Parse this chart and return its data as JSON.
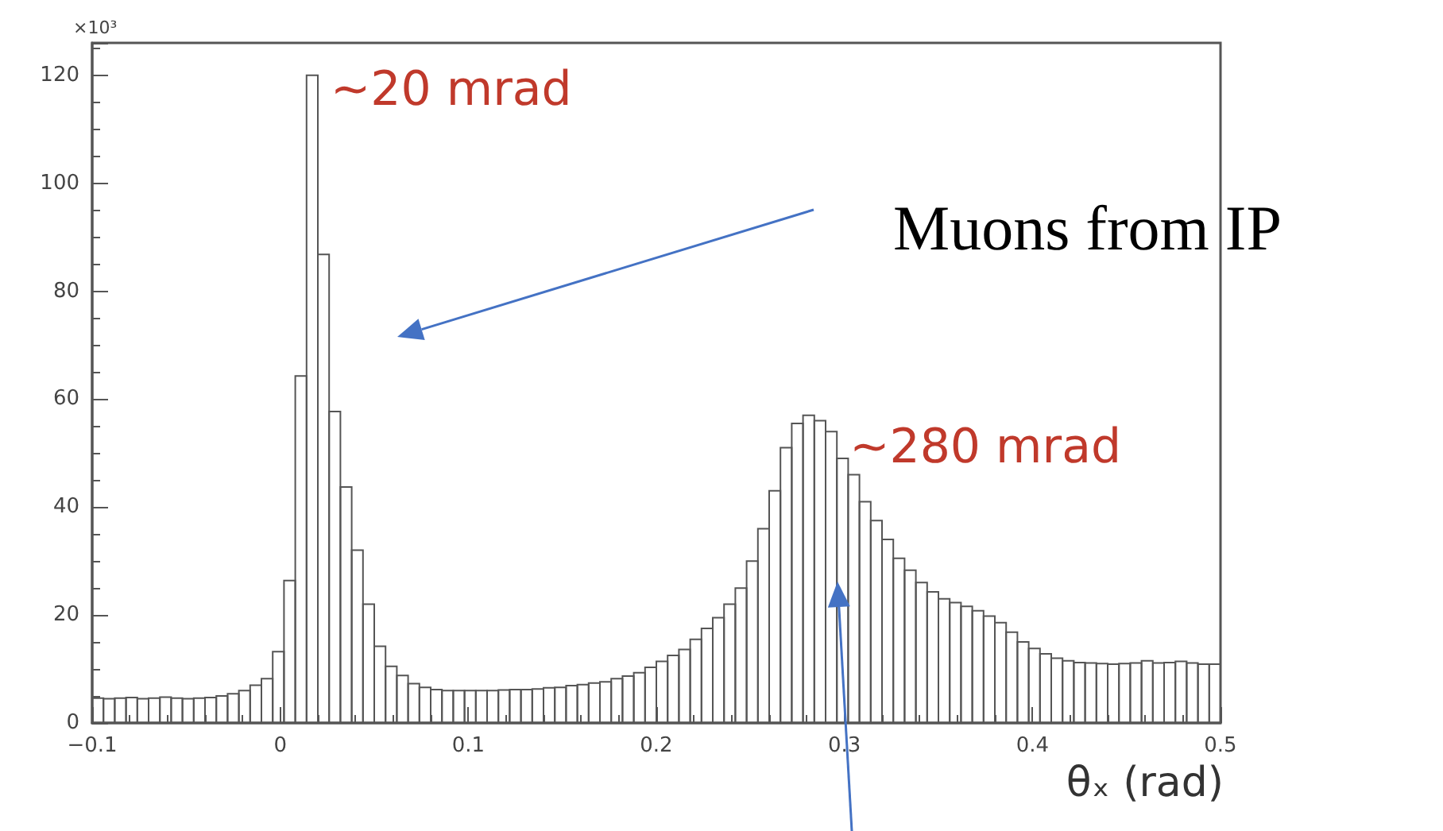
{
  "chart_data": {
    "type": "histogram",
    "ylabel": "×10³",
    "xlabel": "θₓ (rad)",
    "annotations": [
      {
        "text": "~20 mrad",
        "x": 0.02,
        "y": 120
      },
      {
        "text": "~280 mrad",
        "x": 0.296,
        "y": 54
      },
      "Muons from IP"
    ],
    "bins": [
      -0.1,
      -0.094,
      -0.088,
      -0.082,
      -0.076,
      -0.07,
      -0.064,
      -0.058,
      -0.052,
      -0.046,
      -0.04,
      -0.034,
      -0.028,
      -0.022,
      -0.016,
      -0.01,
      -0.004,
      0.002,
      0.008,
      0.014,
      0.02,
      0.026,
      0.032,
      0.038,
      0.044,
      0.05,
      0.056,
      0.062,
      0.068,
      0.074,
      0.08,
      0.086,
      0.092,
      0.098,
      0.104,
      0.11,
      0.116,
      0.122,
      0.128,
      0.134,
      0.14,
      0.146,
      0.152,
      0.158,
      0.164,
      0.17,
      0.176,
      0.182,
      0.188,
      0.194,
      0.2,
      0.206,
      0.212,
      0.218,
      0.224,
      0.23,
      0.236,
      0.242,
      0.248,
      0.254,
      0.26,
      0.266,
      0.272,
      0.278,
      0.284,
      0.29,
      0.296,
      0.302,
      0.308,
      0.314,
      0.32,
      0.326,
      0.332,
      0.338,
      0.344,
      0.35,
      0.356,
      0.362,
      0.368,
      0.374,
      0.38,
      0.386,
      0.392,
      0.398,
      0.404,
      0.41,
      0.416,
      0.422,
      0.428,
      0.434,
      0.44,
      0.446,
      0.452,
      0.458,
      0.464,
      0.47,
      0.476,
      0.482,
      0.488,
      0.494,
      0.5
    ],
    "values": [
      4.6,
      4.5,
      4.6,
      4.7,
      4.5,
      4.6,
      4.8,
      4.6,
      4.5,
      4.6,
      4.7,
      5.0,
      5.4,
      6.0,
      7.0,
      8.2,
      13.2,
      26.4,
      64.3,
      120,
      86.8,
      57.7,
      43.7,
      32,
      22,
      14.2,
      10.5,
      8.8,
      7.3,
      6.6,
      6.2,
      6.0,
      6.0,
      6.0,
      6.0,
      6.0,
      6.1,
      6.2,
      6.2,
      6.3,
      6.5,
      6.6,
      6.9,
      7.1,
      7.4,
      7.6,
      8.2,
      8.7,
      9.3,
      10.3,
      11.4,
      12.5,
      13.6,
      15.5,
      17.5,
      19.5,
      22,
      25,
      30,
      36,
      43,
      51,
      55.5,
      57,
      56,
      54,
      49,
      46,
      41,
      37.5,
      34,
      30.5,
      28.3,
      26,
      24.3,
      23,
      22.3,
      21.6,
      20.8,
      19.8,
      18.6,
      16.8,
      15,
      13.8,
      12.8,
      12,
      11.5,
      11.2,
      11.1,
      11.0,
      10.9,
      11.0,
      11.1,
      11.5,
      11.1,
      11.2,
      11.4,
      11.1,
      10.9,
      10.9
    ],
    "color": "#555555",
    "xlim": [
      -0.1,
      0.5
    ],
    "xticks": [
      -0.1,
      0,
      0.1,
      0.2,
      0.3,
      0.4,
      0.5
    ],
    "ylim": [
      0,
      126
    ],
    "yticks": [
      0,
      20,
      40,
      60,
      80,
      100,
      120
    ],
    "grid": false
  }
}
